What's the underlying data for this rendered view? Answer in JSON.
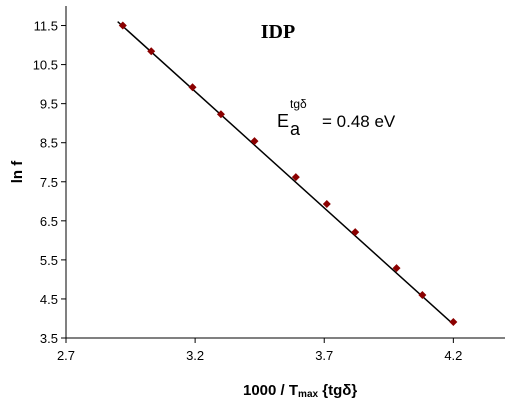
{
  "chart_data": {
    "type": "scatter",
    "title": "IDP",
    "annotation": {
      "main": "E",
      "sup": "tgδ",
      "sub": "a",
      "rest": "= 0.48 eV"
    },
    "x_label": {
      "main": "1000 / T",
      "sub": "max",
      "rest": " {tgδ}"
    },
    "y_label": "ln f",
    "series": [
      {
        "color": "#8b0000",
        "x": [
          2.92,
          3.03,
          3.19,
          3.3,
          3.43,
          3.59,
          3.71,
          3.82,
          3.98,
          4.08,
          4.2
        ],
        "values": [
          11.5,
          10.84,
          9.92,
          9.23,
          8.54,
          7.62,
          6.93,
          6.21,
          5.29,
          4.6,
          3.91
        ]
      }
    ],
    "fit": {
      "color": "#000000",
      "x": [
        2.9,
        4.2
      ],
      "values": [
        11.6,
        3.85
      ]
    },
    "xlim": [
      2.7,
      4.4
    ],
    "xticks": [
      2.7,
      3.2,
      3.7,
      4.2
    ],
    "ylim": [
      3.5,
      12
    ],
    "yticks": [
      3.5,
      4.5,
      5.5,
      6.5,
      7.5,
      8.5,
      9.5,
      10.5,
      11.5
    ]
  }
}
